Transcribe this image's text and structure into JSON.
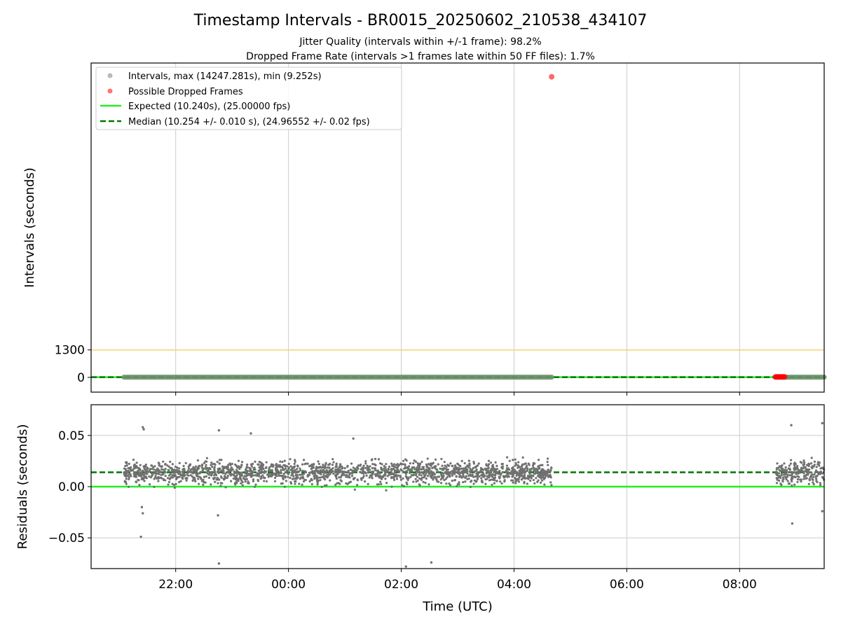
{
  "chart_data": [
    {
      "type": "scatter",
      "title": "Timestamp Intervals - BR0015_20250602_210538_434107",
      "subtitle_lines": [
        "Jitter Quality (intervals within +/-1 frame): 98.2%",
        "Dropped Frame Rate (intervals >1 frames late within 50 FF files): 1.7%"
      ],
      "ylabel": "Intervals (seconds)",
      "yticks": [
        {
          "value": 0,
          "label": "0"
        },
        {
          "value": 1300,
          "label": "1300"
        }
      ],
      "ylim": [
        -700,
        14900
      ],
      "xlim": [
        "20:30",
        "09:30"
      ],
      "grid": "vertical",
      "legend_position": "top-left",
      "threshold_line": {
        "value": 1300,
        "color": "#f5d27a"
      },
      "series": [
        {
          "name": "Intervals, max (14247.281s), min (9.252s)",
          "kind": "scatter",
          "color": "#808080",
          "segments": [
            {
              "start": "21:05",
              "end": "04:40",
              "value": 10.25
            },
            {
              "start": "08:38",
              "end": "09:30",
              "value": 10.25
            }
          ]
        },
        {
          "name": "Possible Dropped Frames",
          "kind": "scatter",
          "color": "#ff0000",
          "points": [
            {
              "x": "04:40",
              "y": 14247.281
            },
            {
              "x": "08:38",
              "y": 20.5
            },
            {
              "x": "08:39",
              "y": 20.5
            },
            {
              "x": "08:40",
              "y": 20.5
            },
            {
              "x": "08:41",
              "y": 20.5
            },
            {
              "x": "08:42",
              "y": 20.5
            },
            {
              "x": "08:43",
              "y": 20.5
            },
            {
              "x": "08:44",
              "y": 20.5
            },
            {
              "x": "08:45",
              "y": 20.5
            },
            {
              "x": "08:46",
              "y": 20.5
            },
            {
              "x": "08:47",
              "y": 20.5
            },
            {
              "x": "08:48",
              "y": 20.5
            }
          ]
        },
        {
          "name": "Expected (10.240s), (25.00000 fps)",
          "kind": "line",
          "style": "solid",
          "color": "#22ee22",
          "value": 10.24
        },
        {
          "name": "Median (10.254 +/- 0.010 s), (24.96552 +/- 0.02 fps)",
          "kind": "line",
          "style": "dashed",
          "color": "#007700",
          "value": 10.254
        }
      ]
    },
    {
      "type": "scatter",
      "xlabel": "Time (UTC)",
      "ylabel": "Residuals (seconds)",
      "ylim": [
        -0.08,
        0.08
      ],
      "xlim": [
        "20:30",
        "09:30"
      ],
      "yticks": [
        {
          "value": 0.05,
          "label": "0.05"
        },
        {
          "value": 0.0,
          "label": "0.00"
        },
        {
          "value": -0.05,
          "label": "−0.05"
        }
      ],
      "xticks": [
        "22:00",
        "00:00",
        "02:00",
        "04:00",
        "06:00",
        "08:00"
      ],
      "grid": "both",
      "series": [
        {
          "name": "Residuals",
          "kind": "scatter",
          "color": "#707070",
          "segments": [
            {
              "start": "21:05",
              "end": "04:40",
              "center": 0.014,
              "spread": 0.011
            },
            {
              "start": "08:38",
              "end": "09:30",
              "center": 0.014,
              "spread": 0.011
            }
          ],
          "outliers": [
            {
              "x": "21:25",
              "y": 0.058
            },
            {
              "x": "21:26",
              "y": 0.056
            },
            {
              "x": "21:24",
              "y": -0.02
            },
            {
              "x": "21:25",
              "y": -0.026
            },
            {
              "x": "21:23",
              "y": -0.049
            },
            {
              "x": "22:45",
              "y": -0.028
            },
            {
              "x": "22:46",
              "y": 0.055
            },
            {
              "x": "22:46",
              "y": -0.075
            },
            {
              "x": "23:20",
              "y": 0.052
            },
            {
              "x": "01:09",
              "y": 0.047
            },
            {
              "x": "02:05",
              "y": -0.078
            },
            {
              "x": "02:32",
              "y": -0.074
            },
            {
              "x": "08:55",
              "y": 0.06
            },
            {
              "x": "08:56",
              "y": -0.036
            },
            {
              "x": "09:28",
              "y": 0.062
            },
            {
              "x": "09:28",
              "y": -0.024
            }
          ]
        },
        {
          "name": "Expected",
          "kind": "line",
          "style": "solid",
          "color": "#22ee22",
          "value": 0.0
        },
        {
          "name": "Median",
          "kind": "line",
          "style": "dashed",
          "color": "#007700",
          "value": 0.014
        }
      ]
    }
  ]
}
